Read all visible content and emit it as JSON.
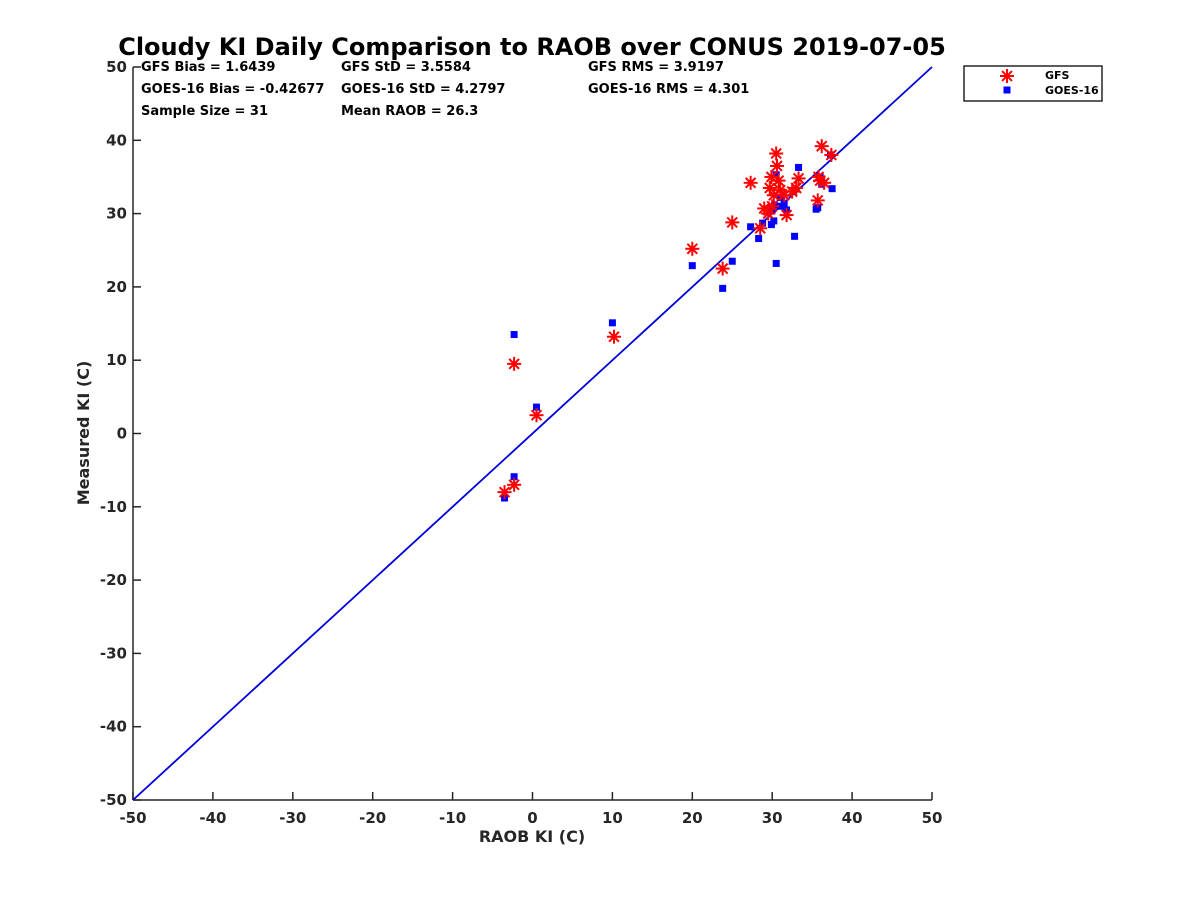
{
  "chart_data": {
    "type": "scatter",
    "title": "Cloudy KI Daily Comparison to RAOB over CONUS 2019-07-05",
    "xlabel": "RAOB KI (C)",
    "ylabel": "Measured KI (C)",
    "xlim": [
      -50,
      50
    ],
    "ylim": [
      -50,
      50
    ],
    "xticks": [
      "-50",
      "-40",
      "-30",
      "-20",
      "-10",
      "0",
      "10",
      "20",
      "30",
      "40",
      "50"
    ],
    "yticks": [
      "-50",
      "-40",
      "-30",
      "-20",
      "-10",
      "0",
      "10",
      "20",
      "30",
      "40",
      "50"
    ],
    "grid": false,
    "legend_position": "outside-top-right",
    "reference_line": {
      "description": "1:1 line",
      "color": "#0000dd"
    },
    "stats": {
      "gfs_bias": "GFS Bias = 1.6439",
      "gfs_std": "GFS StD = 3.5584",
      "gfs_rms": "GFS RMS = 3.9197",
      "goes_bias": "GOES-16 Bias = -0.42677",
      "goes_std": "GOES-16 StD = 4.2797",
      "goes_rms": "GOES-16 RMS = 4.301",
      "sample_size": "Sample Size = 31",
      "mean_raob": "Mean RAOB = 26.3"
    },
    "series": [
      {
        "name": "GFS",
        "marker": "asterisk",
        "color": "#ff0000",
        "points": [
          [
            -3.5,
            -8
          ],
          [
            -2.3,
            -7
          ],
          [
            -2.3,
            9.5
          ],
          [
            0.5,
            2.5
          ],
          [
            10.2,
            13.2
          ],
          [
            20.0,
            25.2
          ],
          [
            23.8,
            22.5
          ],
          [
            25.0,
            28.8
          ],
          [
            27.3,
            34.2
          ],
          [
            28.5,
            28.0
          ],
          [
            29.0,
            30.7
          ],
          [
            29.7,
            33.5
          ],
          [
            29.9,
            35.0
          ],
          [
            30.2,
            32.5
          ],
          [
            30.5,
            38.2
          ],
          [
            30.6,
            36.5
          ],
          [
            31.0,
            33.2
          ],
          [
            31.5,
            32.5
          ],
          [
            31.8,
            29.8
          ],
          [
            32.5,
            33.0
          ],
          [
            33.3,
            34.8
          ],
          [
            35.7,
            31.8
          ],
          [
            35.8,
            35.0
          ],
          [
            36.2,
            39.2
          ],
          [
            36.5,
            34.2
          ],
          [
            37.4,
            38.0
          ],
          [
            30.0,
            31.0
          ],
          [
            33.0,
            33.5
          ],
          [
            29.5,
            30.0
          ],
          [
            36.0,
            34.5
          ],
          [
            30.8,
            34.5
          ]
        ]
      },
      {
        "name": "GOES-16",
        "marker": "square",
        "color": "#0000ff",
        "points": [
          [
            -3.5,
            -8.8
          ],
          [
            -2.3,
            -5.9
          ],
          [
            -2.3,
            13.5
          ],
          [
            0.5,
            3.6
          ],
          [
            10.0,
            15.1
          ],
          [
            20.0,
            22.9
          ],
          [
            23.8,
            19.8
          ],
          [
            25.0,
            23.5
          ],
          [
            27.3,
            28.2
          ],
          [
            28.3,
            26.6
          ],
          [
            28.8,
            28.7
          ],
          [
            29.8,
            30.8
          ],
          [
            29.9,
            28.5
          ],
          [
            30.2,
            29.0
          ],
          [
            30.3,
            31.2
          ],
          [
            30.5,
            35.3
          ],
          [
            30.5,
            23.2
          ],
          [
            31.0,
            31.0
          ],
          [
            31.5,
            31.3
          ],
          [
            31.8,
            30.5
          ],
          [
            32.8,
            26.9
          ],
          [
            33.3,
            36.3
          ],
          [
            35.5,
            30.6
          ],
          [
            35.7,
            30.8
          ],
          [
            36.0,
            35.0
          ],
          [
            36.2,
            34.0
          ],
          [
            37.3,
            38.0
          ],
          [
            37.5,
            33.4
          ],
          [
            31.0,
            32.2
          ],
          [
            30.0,
            30.5
          ],
          [
            36.1,
            34.6
          ]
        ]
      }
    ]
  }
}
